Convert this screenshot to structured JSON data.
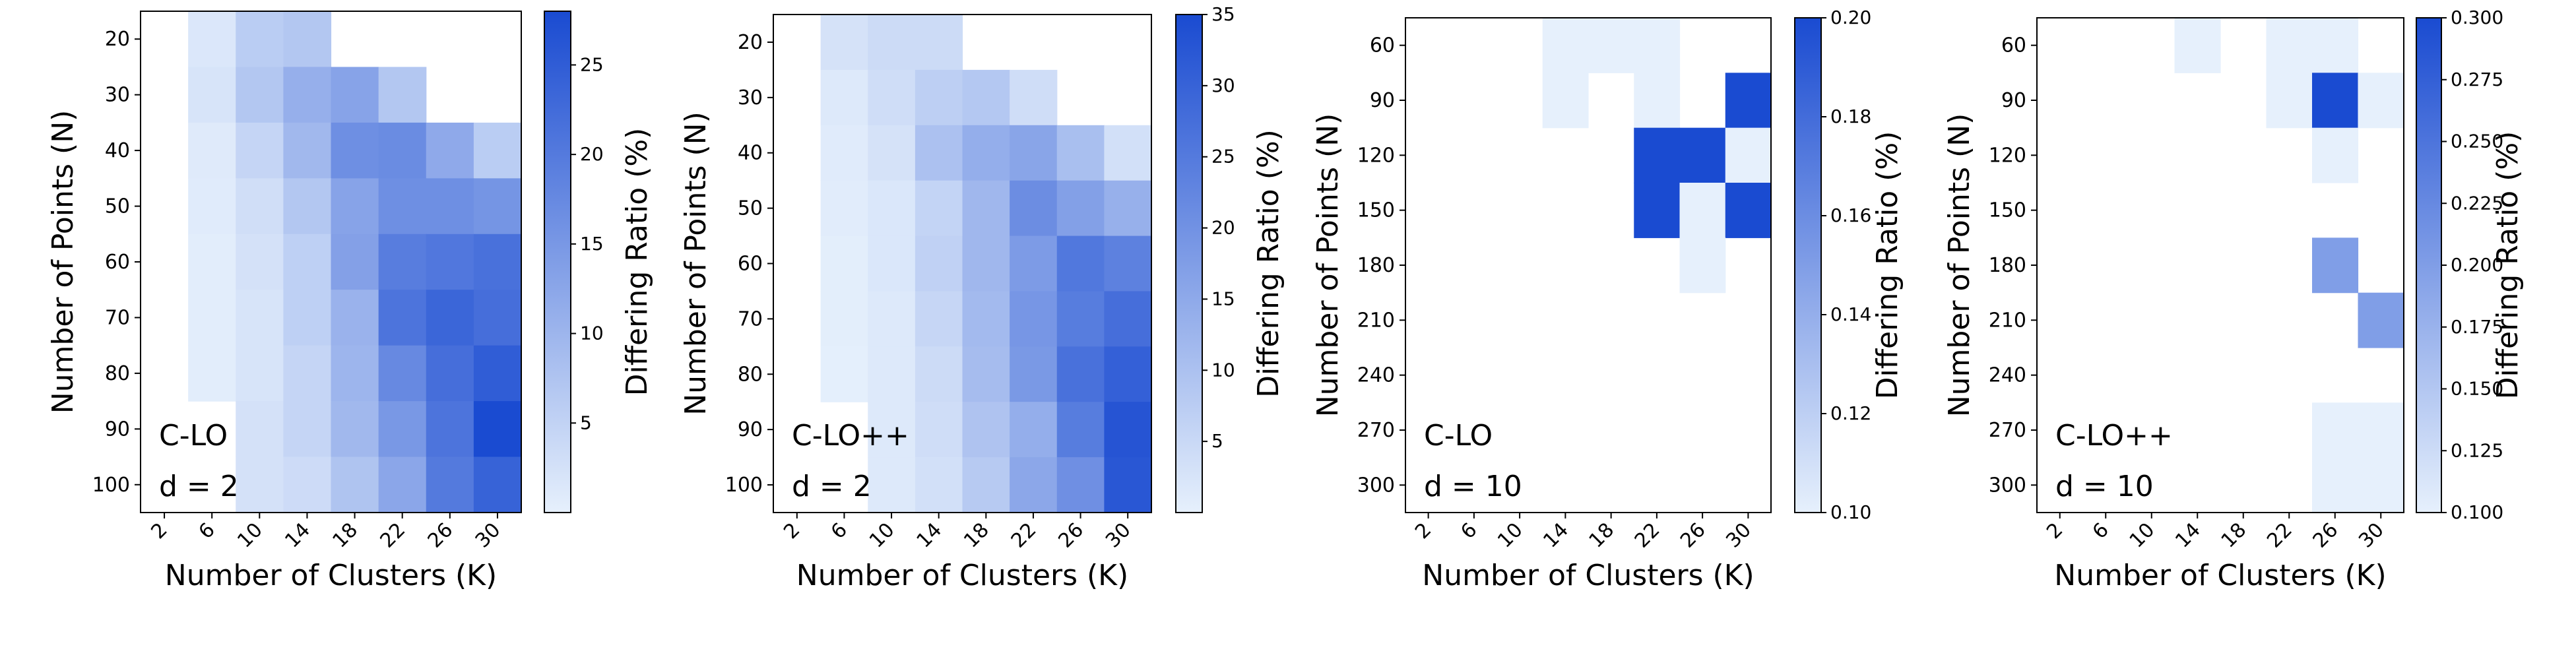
{
  "colors": {
    "low": "#e6f0fc",
    "high": "#1a4bd1",
    "axis": "#000000",
    "background": "#ffffff"
  },
  "chart_data": [
    {
      "type": "heatmap",
      "method": "C-LO",
      "dimension": "d = 2",
      "xlabel": "Number of Clusters (K)",
      "ylabel": "Number of Points (N)",
      "colorbar_label": "Differing Ratio (%)",
      "x_categories": [
        "2",
        "6",
        "10",
        "14",
        "18",
        "22",
        "26",
        "30"
      ],
      "y_categories": [
        "20",
        "30",
        "40",
        "50",
        "60",
        "70",
        "80",
        "90",
        "100"
      ],
      "vmin": 0,
      "vmax": 28,
      "colorbar_ticks": [
        5,
        10,
        15,
        20,
        25
      ],
      "colorbar_tick_labels": [
        "5",
        "10",
        "15",
        "20",
        "25"
      ],
      "values": [
        [
          null,
          1.5,
          6,
          7,
          null,
          null,
          null,
          null
        ],
        [
          null,
          2,
          7,
          11,
          13,
          7,
          null,
          null
        ],
        [
          null,
          1,
          4.5,
          9.5,
          16.5,
          17,
          12,
          6
        ],
        [
          null,
          0.8,
          3,
          7,
          13,
          16.5,
          16.5,
          15.5
        ],
        [
          null,
          0.5,
          2.5,
          5.5,
          13.5,
          19.5,
          20.5,
          21.5
        ],
        [
          null,
          0.5,
          2,
          5.5,
          10.5,
          21,
          23.5,
          22
        ],
        [
          null,
          0.5,
          2,
          4.5,
          10,
          17.5,
          22,
          25
        ],
        [
          null,
          null,
          2.5,
          4.5,
          9.5,
          15,
          21,
          28
        ],
        [
          null,
          null,
          2.5,
          3.5,
          7.5,
          12.5,
          20,
          24
        ]
      ]
    },
    {
      "type": "heatmap",
      "method": "C-LO++",
      "dimension": "d = 2",
      "xlabel": "Number of Clusters (K)",
      "ylabel": "Number of Points (N)",
      "colorbar_label": "Differing Ratio (%)",
      "x_categories": [
        "2",
        "6",
        "10",
        "14",
        "18",
        "22",
        "26",
        "30"
      ],
      "y_categories": [
        "20",
        "30",
        "40",
        "50",
        "60",
        "70",
        "80",
        "90",
        "100"
      ],
      "vmin": 0,
      "vmax": 35,
      "colorbar_ticks": [
        5,
        10,
        15,
        20,
        25,
        30,
        35
      ],
      "colorbar_tick_labels": [
        "5",
        "10",
        "15",
        "20",
        "25",
        "30",
        "35"
      ],
      "values": [
        [
          null,
          3,
          4.5,
          4.5,
          null,
          null,
          null,
          null
        ],
        [
          null,
          1.5,
          4,
          7,
          8.5,
          4,
          null,
          null
        ],
        [
          null,
          1,
          3,
          10,
          14,
          16,
          10.5,
          3.5
        ],
        [
          null,
          0.8,
          2,
          6,
          12,
          21,
          17,
          13.5
        ],
        [
          null,
          0.5,
          2,
          6.5,
          12,
          18,
          25.5,
          23.5
        ],
        [
          null,
          0.5,
          1.5,
          5.5,
          11.5,
          19,
          24.5,
          27.5
        ],
        [
          null,
          0.3,
          1.5,
          4.5,
          11,
          18.5,
          27,
          30.5
        ],
        [
          null,
          null,
          1.5,
          4,
          9.5,
          14,
          24.5,
          33
        ],
        [
          null,
          null,
          1.5,
          3.5,
          8,
          15.5,
          20.5,
          32.5
        ]
      ]
    },
    {
      "type": "heatmap",
      "method": "C-LO",
      "dimension": "d = 10",
      "xlabel": "Number of Clusters (K)",
      "ylabel": "Number of Points (N)",
      "colorbar_label": "Differing Ratio (%)",
      "x_categories": [
        "2",
        "6",
        "10",
        "14",
        "18",
        "22",
        "26",
        "30"
      ],
      "y_categories": [
        "60",
        "90",
        "120",
        "150",
        "180",
        "210",
        "240",
        "270",
        "300"
      ],
      "vmin": 0.1,
      "vmax": 0.2,
      "colorbar_ticks": [
        0.1,
        0.12,
        0.14,
        0.16,
        0.18,
        0.2
      ],
      "colorbar_tick_labels": [
        "0.10",
        "0.12",
        "0.14",
        "0.16",
        "0.18",
        "0.20"
      ],
      "values": [
        [
          null,
          null,
          null,
          0.1,
          0.1,
          0.1,
          null,
          null
        ],
        [
          null,
          null,
          null,
          0.1,
          null,
          0.1,
          null,
          0.2
        ],
        [
          null,
          null,
          null,
          null,
          null,
          0.2,
          0.2,
          0.1
        ],
        [
          null,
          null,
          null,
          null,
          null,
          0.2,
          0.1,
          0.2
        ],
        [
          null,
          null,
          null,
          null,
          null,
          null,
          0.1,
          null
        ],
        [
          null,
          null,
          null,
          null,
          null,
          null,
          null,
          null
        ],
        [
          null,
          null,
          null,
          null,
          null,
          null,
          null,
          null
        ],
        [
          null,
          null,
          null,
          null,
          null,
          null,
          null,
          null
        ],
        [
          null,
          null,
          null,
          null,
          null,
          null,
          null,
          null
        ]
      ]
    },
    {
      "type": "heatmap",
      "method": "C-LO++",
      "dimension": "d = 10",
      "xlabel": "Number of Clusters (K)",
      "ylabel": "Number of Points (N)",
      "colorbar_label": "Differing Ratio (%)",
      "x_categories": [
        "2",
        "6",
        "10",
        "14",
        "18",
        "22",
        "26",
        "30"
      ],
      "y_categories": [
        "60",
        "90",
        "120",
        "150",
        "180",
        "210",
        "240",
        "270",
        "300"
      ],
      "vmin": 0.1,
      "vmax": 0.3,
      "colorbar_ticks": [
        0.1,
        0.125,
        0.15,
        0.175,
        0.2,
        0.225,
        0.25,
        0.275,
        0.3
      ],
      "colorbar_tick_labels": [
        "0.100",
        "0.125",
        "0.150",
        "0.175",
        "0.200",
        "0.225",
        "0.250",
        "0.275",
        "0.300"
      ],
      "values": [
        [
          null,
          null,
          null,
          0.1,
          null,
          0.1,
          0.1,
          null
        ],
        [
          null,
          null,
          null,
          null,
          null,
          0.1,
          0.3,
          0.1
        ],
        [
          null,
          null,
          null,
          null,
          null,
          null,
          0.1,
          null
        ],
        [
          null,
          null,
          null,
          null,
          null,
          null,
          null,
          null
        ],
        [
          null,
          null,
          null,
          null,
          null,
          null,
          0.2,
          null
        ],
        [
          null,
          null,
          null,
          null,
          null,
          null,
          null,
          0.2
        ],
        [
          null,
          null,
          null,
          null,
          null,
          null,
          null,
          null
        ],
        [
          null,
          null,
          null,
          null,
          null,
          null,
          0.1,
          0.1
        ],
        [
          null,
          null,
          null,
          null,
          null,
          null,
          0.1,
          0.1
        ]
      ]
    }
  ]
}
